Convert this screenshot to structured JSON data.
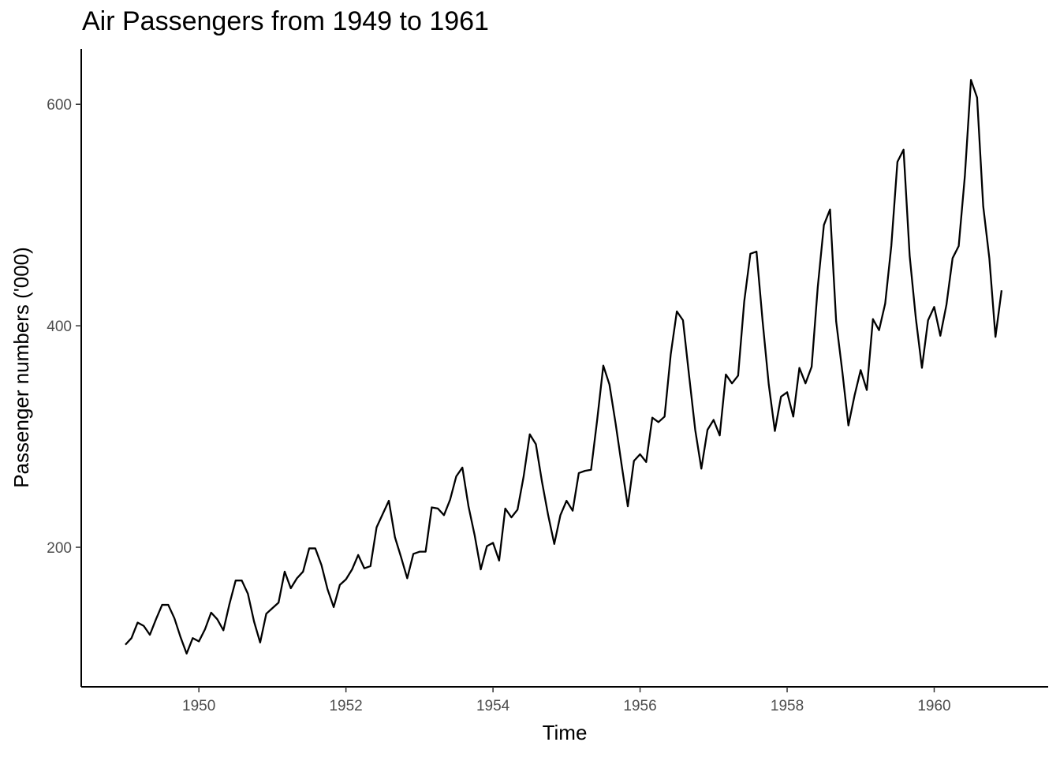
{
  "chart_data": {
    "type": "line",
    "title": "Air Passengers from 1949 to 1961",
    "xlabel": "Time",
    "ylabel": "Passenger numbers ('000)",
    "xlim": [
      1948.4,
      1961.55
    ],
    "ylim": [
      74,
      650
    ],
    "x_ticks": [
      1950,
      1952,
      1954,
      1956,
      1958,
      1960
    ],
    "y_ticks": [
      200,
      400,
      600
    ],
    "grid": false,
    "series": [
      {
        "x_start": 1949,
        "x_step": 0.0833333,
        "values": [
          112,
          118,
          132,
          129,
          121,
          135,
          148,
          148,
          136,
          119,
          104,
          118,
          115,
          126,
          141,
          135,
          125,
          149,
          170,
          170,
          158,
          133,
          114,
          140,
          145,
          150,
          178,
          163,
          172,
          178,
          199,
          199,
          184,
          162,
          146,
          166,
          171,
          180,
          193,
          181,
          183,
          218,
          230,
          242,
          209,
          191,
          172,
          194,
          196,
          196,
          236,
          235,
          229,
          243,
          264,
          272,
          237,
          211,
          180,
          201,
          204,
          188,
          235,
          227,
          234,
          264,
          302,
          293,
          259,
          229,
          203,
          229,
          242,
          233,
          267,
          269,
          270,
          315,
          364,
          347,
          312,
          274,
          237,
          278,
          284,
          277,
          317,
          313,
          318,
          374,
          413,
          405,
          355,
          306,
          271,
          306,
          315,
          301,
          356,
          348,
          355,
          422,
          465,
          467,
          404,
          347,
          305,
          336,
          340,
          318,
          362,
          348,
          363,
          435,
          491,
          505,
          404,
          359,
          310,
          337,
          360,
          342,
          406,
          396,
          420,
          472,
          548,
          559,
          463,
          407,
          362,
          405,
          417,
          391,
          419,
          461,
          472,
          535,
          622,
          606,
          508,
          461,
          390,
          432
        ]
      }
    ]
  }
}
